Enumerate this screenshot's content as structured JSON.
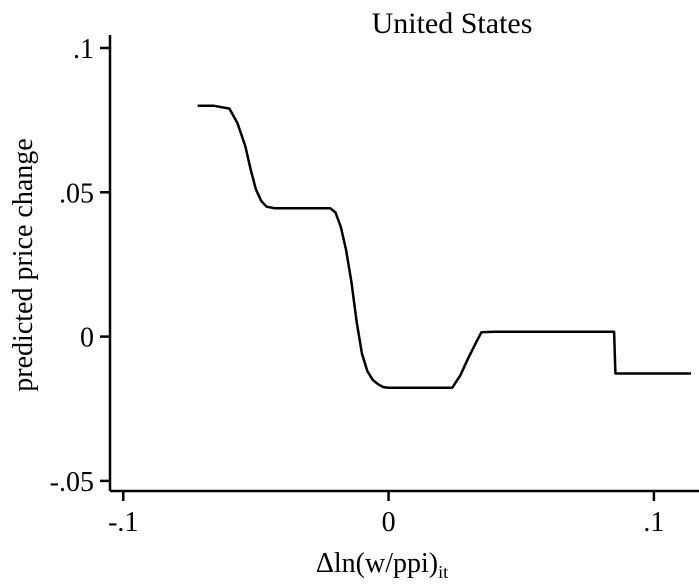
{
  "chart_data": {
    "type": "line",
    "title": "United States",
    "xlabel": "Δln(w/ppi)",
    "xlabel_subscript": "it",
    "ylabel": "predicted price change",
    "xlim": [
      -0.105,
      0.117
    ],
    "ylim": [
      -0.0535,
      0.1045
    ],
    "x_ticks": [
      -0.1,
      0,
      0.1
    ],
    "x_tick_labels": [
      "-.1",
      "0",
      ".1"
    ],
    "y_ticks": [
      -0.05,
      0,
      0.05,
      0.1
    ],
    "y_tick_labels": [
      "-.05",
      "0",
      ".05",
      ".1"
    ],
    "grid": false,
    "series": [
      {
        "color": "#000000",
        "x": [
          -0.072,
          -0.066,
          -0.06,
          -0.057,
          -0.054,
          -0.052,
          -0.05,
          -0.048,
          -0.046,
          -0.043,
          -0.04,
          -0.03,
          -0.022,
          -0.02,
          -0.018,
          -0.016,
          -0.014,
          -0.012,
          -0.01,
          -0.008,
          -0.006,
          -0.004,
          -0.002,
          0.0,
          0.002,
          0.01,
          0.02,
          0.024,
          0.027,
          0.03,
          0.033,
          0.035,
          0.04,
          0.06,
          0.08,
          0.085,
          0.0855,
          0.09,
          0.1,
          0.114
        ],
        "y": [
          0.08,
          0.08,
          0.079,
          0.074,
          0.066,
          0.058,
          0.051,
          0.047,
          0.045,
          0.0445,
          0.0445,
          0.0445,
          0.0445,
          0.043,
          0.038,
          0.03,
          0.019,
          0.005,
          -0.006,
          -0.012,
          -0.015,
          -0.0165,
          -0.0175,
          -0.0177,
          -0.0177,
          -0.0177,
          -0.0177,
          -0.0177,
          -0.0135,
          -0.0075,
          -0.002,
          0.0015,
          0.0017,
          0.0017,
          0.0017,
          0.0017,
          -0.0128,
          -0.0128,
          -0.0128,
          -0.0128
        ]
      }
    ]
  }
}
